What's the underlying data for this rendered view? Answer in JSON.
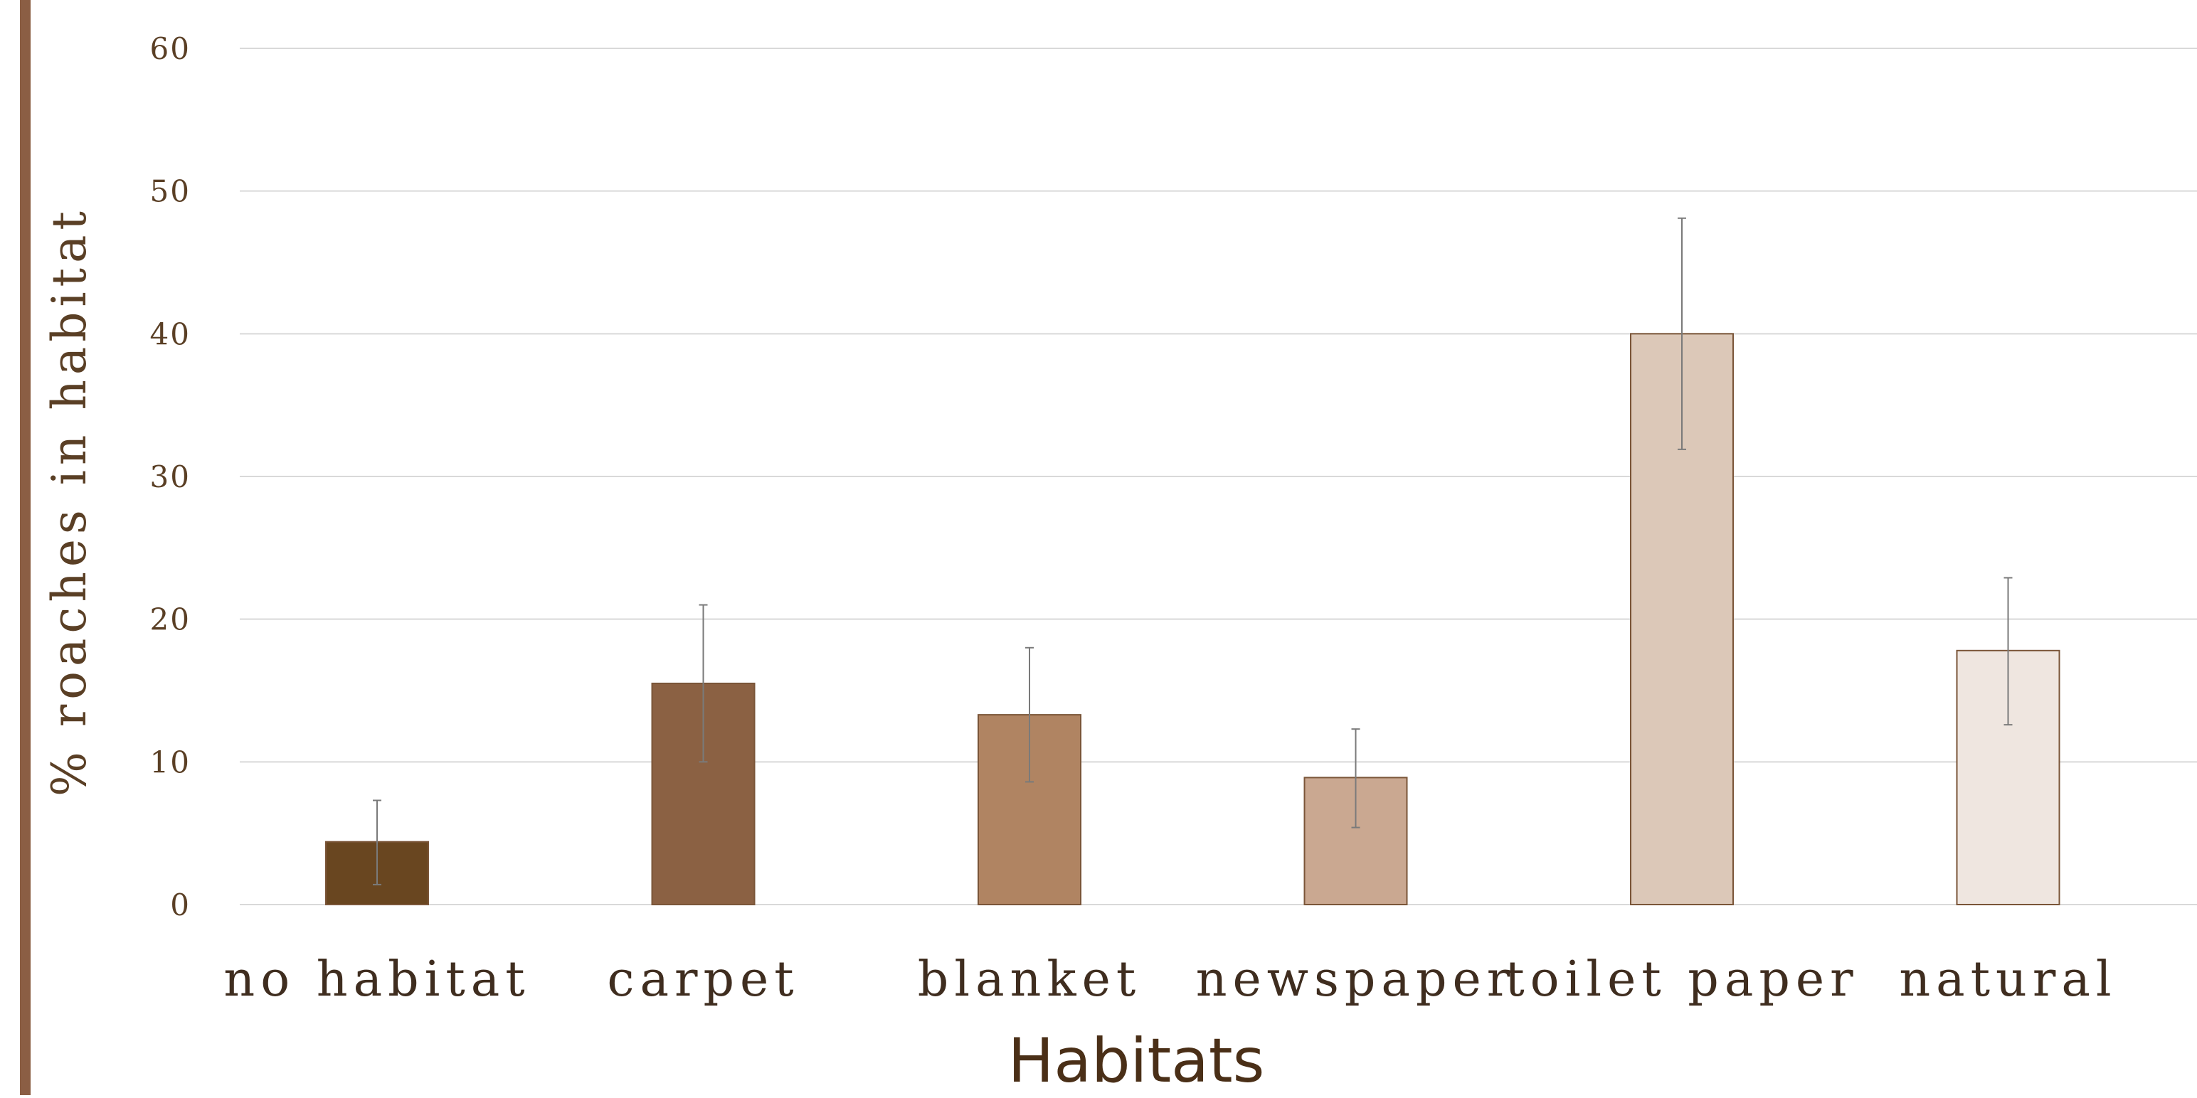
{
  "chart_data": {
    "type": "bar",
    "title": "",
    "xlabel": "Habitats",
    "ylabel": "% roaches in  habitat",
    "ylim": [
      0,
      60
    ],
    "yticks": [
      "0",
      "10",
      "20",
      "30",
      "40",
      "50",
      "60"
    ],
    "categories": [
      "no habitat",
      "carpet",
      "blanket",
      "newspaper",
      "toilet paper",
      "natural"
    ],
    "series": [
      {
        "values": [
          4.4,
          15.5,
          13.3,
          8.9,
          40.0,
          17.8
        ],
        "error_low": [
          1.4,
          10.0,
          8.6,
          5.4,
          31.9,
          12.6
        ],
        "error_high": [
          7.3,
          21.0,
          18.0,
          12.3,
          48.1,
          22.9
        ]
      }
    ],
    "bar_colors": [
      "#694620",
      "#8b6143",
      "#b08462",
      "#caa891",
      "#dcc8b8",
      "#efe6e0"
    ],
    "gridlines": true
  }
}
